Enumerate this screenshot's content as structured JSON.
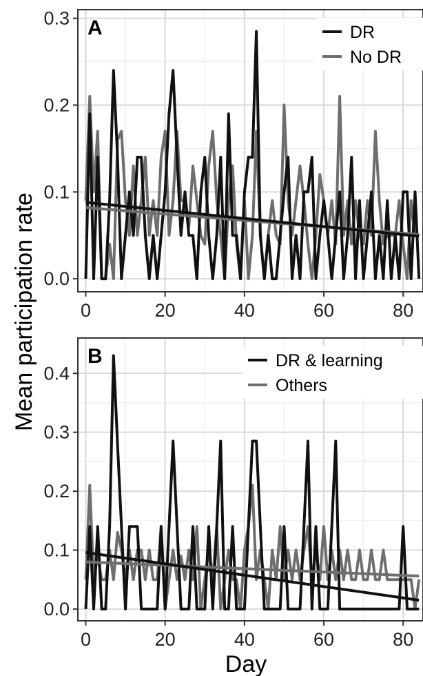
{
  "colors": {
    "black_series": "#111111",
    "gray_series": "#6e6e6e",
    "grid_major": "#d9d9d9",
    "grid_minor": "#eeeeee",
    "panel_border": "#333333"
  },
  "ylabel": "Mean participation rate",
  "xlabel": "Day",
  "chart_data": [
    {
      "type": "line",
      "panel_label": "A",
      "xlim": [
        -2,
        85
      ],
      "ylim": [
        -0.015,
        0.31
      ],
      "xticks": [
        0,
        20,
        40,
        60,
        80
      ],
      "xtick_labels": [
        "0",
        "20",
        "40",
        "60",
        "80"
      ],
      "yticks": [
        0,
        0.1,
        0.2,
        0.3
      ],
      "ytick_labels": [
        "0.0",
        "0.1",
        "0.2",
        "0.3"
      ],
      "grid": true,
      "legend_position": "top-right",
      "x": [
        0,
        1,
        2,
        3,
        4,
        5,
        6,
        7,
        8,
        9,
        10,
        11,
        12,
        13,
        14,
        15,
        16,
        17,
        18,
        19,
        20,
        21,
        22,
        23,
        24,
        25,
        26,
        27,
        28,
        29,
        30,
        31,
        32,
        33,
        34,
        35,
        36,
        37,
        38,
        39,
        40,
        41,
        42,
        43,
        44,
        45,
        46,
        47,
        48,
        49,
        50,
        51,
        52,
        53,
        54,
        55,
        56,
        57,
        58,
        59,
        60,
        61,
        62,
        63,
        64,
        65,
        66,
        67,
        68,
        69,
        70,
        71,
        72,
        73,
        74,
        75,
        76,
        77,
        78,
        79,
        80,
        81,
        82,
        83,
        84
      ],
      "series": [
        {
          "name": "DR",
          "color": "#111111",
          "values": [
            0,
            0.19,
            0,
            0.14,
            0,
            0,
            0.09,
            0.24,
            0.14,
            0,
            0.05,
            0.1,
            0.05,
            0.14,
            0.14,
            0.05,
            0,
            0.05,
            0,
            0.05,
            0.1,
            0.19,
            0.24,
            0.14,
            0.05,
            0.1,
            0.05,
            0.05,
            0,
            0.1,
            0.14,
            0.05,
            0,
            0.05,
            0.14,
            0,
            0.19,
            0.05,
            0.05,
            0,
            0.1,
            0.14,
            0.14,
            0.285,
            0.05,
            0,
            0.05,
            0,
            0,
            0.05,
            0.1,
            0.14,
            0,
            0.05,
            0,
            0.1,
            0.1,
            0.14,
            0,
            0.05,
            0.09,
            0.05,
            0,
            0.05,
            0.1,
            0,
            0.05,
            0.14,
            0,
            0.09,
            0,
            0.05,
            0.1,
            0,
            0.05,
            0,
            0.09,
            0,
            0.05,
            0,
            0.1,
            0.1,
            0,
            0.1,
            0
          ],
          "trend": [
            0.088,
            0.049
          ]
        },
        {
          "name": "No DR",
          "color": "#6e6e6e",
          "values": [
            0.09,
            0.21,
            0.1,
            0.17,
            0,
            0,
            0.04,
            0,
            0.16,
            0.17,
            0.09,
            0.05,
            0.13,
            0.05,
            0.09,
            0.14,
            0.05,
            0.09,
            0.05,
            0.14,
            0.17,
            0.05,
            0.09,
            0.17,
            0.09,
            0.09,
            0.06,
            0.13,
            0.09,
            0.05,
            0.04,
            0.13,
            0.17,
            0.09,
            0.05,
            0,
            0.09,
            0.13,
            0.04,
            0,
            0.09,
            0,
            0.05,
            0.17,
            0.05,
            0,
            0.05,
            0.09,
            0.05,
            0.04,
            0.2,
            0.09,
            0.05,
            0.09,
            0.13,
            0.09,
            0.04,
            0,
            0.05,
            0.12,
            0.09,
            0.05,
            0.09,
            0.04,
            0.21,
            0.05,
            0.09,
            0.04,
            0.09,
            0.05,
            0.04,
            0.09,
            0.05,
            0.17,
            0.09,
            0.04,
            0.05,
            0.05,
            0.05,
            0.09,
            0.04,
            0,
            0.09,
            0.05,
            0.05
          ],
          "trend": [
            0.082,
            0.051
          ]
        }
      ]
    },
    {
      "type": "line",
      "panel_label": "B",
      "xlim": [
        -2,
        85
      ],
      "ylim": [
        -0.02,
        0.46
      ],
      "xticks": [
        0,
        20,
        40,
        60,
        80
      ],
      "xtick_labels": [
        "0",
        "20",
        "40",
        "60",
        "80"
      ],
      "yticks": [
        0,
        0.1,
        0.2,
        0.3,
        0.4
      ],
      "ytick_labels": [
        "0.0",
        "0.1",
        "0.2",
        "0.3",
        "0.4"
      ],
      "grid": true,
      "legend_position": "top-right",
      "x": [
        0,
        1,
        2,
        3,
        4,
        5,
        6,
        7,
        8,
        9,
        10,
        11,
        12,
        13,
        14,
        15,
        16,
        17,
        18,
        19,
        20,
        21,
        22,
        23,
        24,
        25,
        26,
        27,
        28,
        29,
        30,
        31,
        32,
        33,
        34,
        35,
        36,
        37,
        38,
        39,
        40,
        41,
        42,
        43,
        44,
        45,
        46,
        47,
        48,
        49,
        50,
        51,
        52,
        53,
        54,
        55,
        56,
        57,
        58,
        59,
        60,
        61,
        62,
        63,
        64,
        65,
        66,
        67,
        68,
        69,
        70,
        71,
        72,
        73,
        74,
        75,
        76,
        77,
        78,
        79,
        80,
        81,
        82,
        83,
        84
      ],
      "series": [
        {
          "name": "DR & learning",
          "color": "#111111",
          "values": [
            0,
            0.14,
            0,
            0.14,
            0,
            0,
            0.14,
            0.43,
            0.28,
            0.14,
            0,
            0.14,
            0.14,
            0.14,
            0,
            0,
            0,
            0,
            0,
            0.14,
            0,
            0.14,
            0.285,
            0.14,
            0,
            0,
            0,
            0.14,
            0,
            0,
            0,
            0.14,
            0,
            0.14,
            0.285,
            0,
            0,
            0.14,
            0,
            0,
            0,
            0.14,
            0.285,
            0.285,
            0.14,
            0,
            0,
            0,
            0,
            0,
            0.14,
            0,
            0,
            0,
            0,
            0.14,
            0.285,
            0,
            0.14,
            0,
            0,
            0,
            0.14,
            0.285,
            0,
            0,
            0,
            0,
            0,
            0,
            0,
            0,
            0,
            0,
            0,
            0,
            0,
            0,
            0,
            0,
            0.14,
            0,
            0,
            0,
            0
          ],
          "trend": [
            0.096,
            0.015
          ]
        },
        {
          "name": "Others",
          "color": "#6e6e6e",
          "values": [
            0.05,
            0.21,
            0.05,
            0.09,
            0.05,
            0.05,
            0.1,
            0.05,
            0.13,
            0.1,
            0.05,
            0.1,
            0.05,
            0.1,
            0.1,
            0.05,
            0.1,
            0.05,
            0.05,
            0.14,
            0,
            0.05,
            0.1,
            0.05,
            0.09,
            0.05,
            0.1,
            0.05,
            0.14,
            0,
            0.05,
            0.1,
            0.05,
            0.14,
            0,
            0.05,
            0.1,
            0.05,
            0.05,
            0,
            0.1,
            0.14,
            0.21,
            0.05,
            0.1,
            0.05,
            0,
            0.1,
            0.05,
            0.14,
            0.05,
            0.1,
            0.05,
            0.1,
            0.05,
            0.1,
            0.14,
            0.05,
            0.1,
            0.05,
            0.14,
            0.05,
            0.1,
            0.05,
            0.1,
            0.05,
            0.1,
            0.05,
            0.05,
            0.1,
            0.05,
            0.05,
            0.1,
            0.05,
            0.05,
            0.1,
            0.05,
            0.05,
            0.05,
            0.05,
            0.05,
            0.05,
            0.05,
            0,
            0.05
          ],
          "trend": [
            0.08,
            0.056
          ]
        }
      ]
    }
  ]
}
